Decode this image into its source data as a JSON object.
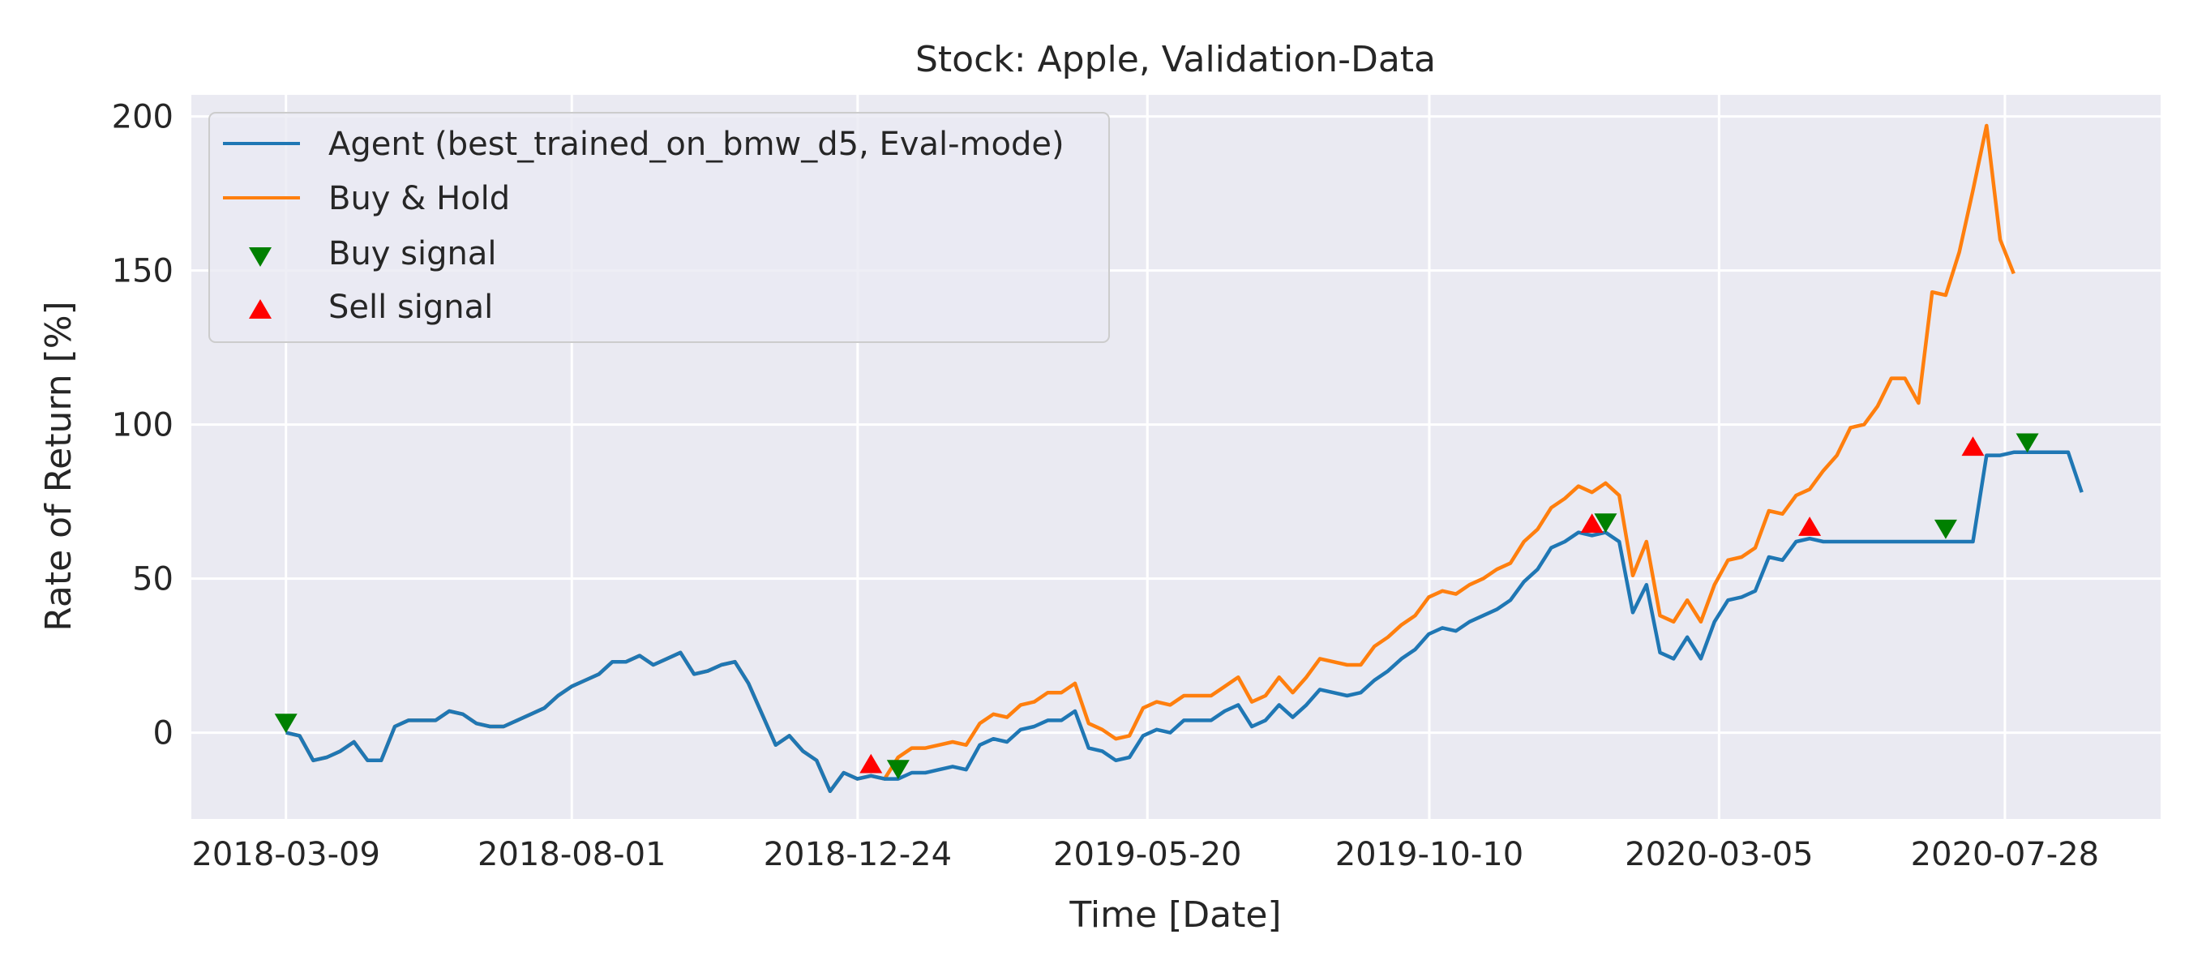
{
  "chart_data": {
    "type": "line",
    "title": "Stock: Apple, Validation-Data",
    "xlabel": "Time [Date]",
    "ylabel": "Rate of Return [%]",
    "x_start": "2018-03-09",
    "x_end": "2020-09-05",
    "xlim": [
      "2018-01-20",
      "2020-10-15"
    ],
    "ylim": [
      -28,
      207
    ],
    "x_ticks": [
      "2018-03-09",
      "2018-08-01",
      "2018-12-24",
      "2019-05-20",
      "2019-10-10",
      "2020-03-05",
      "2020-07-28"
    ],
    "y_ticks": [
      0,
      50,
      100,
      150,
      200
    ],
    "grid": true,
    "legend_position": "upper left",
    "series": [
      {
        "name": "Agent (best_trained_on_bmw_d5, Eval-mode)",
        "color": "#1f77b4",
        "values": [
          0,
          -1,
          -9,
          -8,
          -6,
          -3,
          -9,
          -9,
          2,
          4,
          4,
          4,
          7,
          6,
          3,
          2,
          2,
          4,
          6,
          8,
          12,
          15,
          17,
          19,
          23,
          23,
          25,
          22,
          24,
          26,
          19,
          20,
          22,
          23,
          16,
          6,
          -4,
          -1,
          -6,
          -9,
          -19,
          -13,
          -15,
          -14,
          -15,
          -15,
          -13,
          -13,
          -12,
          -11,
          -12,
          -4,
          -2,
          -3,
          1,
          2,
          4,
          4,
          7,
          -5,
          -6,
          -9,
          -8,
          -1,
          1,
          0,
          4,
          4,
          4,
          7,
          9,
          2,
          4,
          9,
          5,
          9,
          14,
          13,
          12,
          13,
          17,
          20,
          24,
          27,
          32,
          34,
          33,
          36,
          38,
          40,
          43,
          49,
          53,
          60,
          62,
          65,
          64,
          65,
          62,
          39,
          48,
          26,
          24,
          31,
          24,
          36,
          43,
          44,
          46,
          57,
          56,
          62,
          63,
          62,
          62,
          62,
          62,
          62,
          62,
          62,
          62,
          62,
          62,
          62,
          62,
          90,
          90,
          91,
          91,
          91,
          91,
          91,
          78
        ]
      },
      {
        "name": "Buy & Hold",
        "color": "#ff7f0e",
        "values": [
          0,
          -1,
          -9,
          -8,
          -6,
          -3,
          -9,
          -9,
          2,
          4,
          4,
          4,
          7,
          6,
          3,
          2,
          2,
          4,
          6,
          8,
          12,
          15,
          17,
          19,
          23,
          23,
          25,
          22,
          24,
          26,
          19,
          20,
          22,
          23,
          16,
          6,
          -4,
          -1,
          -6,
          -9,
          -19,
          -13,
          -15,
          -14,
          -15,
          -8,
          -5,
          -5,
          -4,
          -3,
          -4,
          3,
          6,
          5,
          9,
          10,
          13,
          13,
          16,
          3,
          1,
          -2,
          -1,
          8,
          10,
          9,
          12,
          12,
          12,
          15,
          18,
          10,
          12,
          18,
          13,
          18,
          24,
          23,
          22,
          22,
          28,
          31,
          35,
          38,
          44,
          46,
          45,
          48,
          50,
          53,
          55,
          62,
          66,
          73,
          76,
          80,
          78,
          81,
          77,
          51,
          62,
          38,
          36,
          43,
          36,
          48,
          56,
          57,
          60,
          72,
          71,
          77,
          79,
          85,
          90,
          99,
          100,
          106,
          115,
          115,
          107,
          143,
          142,
          156,
          176,
          197,
          160,
          149
        ]
      }
    ],
    "markers": [
      {
        "name": "Buy signal",
        "shape": "triangle-down",
        "color": "#008000",
        "points": [
          {
            "i": 0,
            "y": 3
          },
          {
            "i": 45,
            "y": -12
          },
          {
            "i": 97,
            "y": 68
          },
          {
            "i": 122,
            "y": 66
          },
          {
            "i": 128,
            "y": 94
          }
        ]
      },
      {
        "name": "Sell signal",
        "shape": "triangle-up",
        "color": "#ff0000",
        "points": [
          {
            "i": 43,
            "y": -10
          },
          {
            "i": 96,
            "y": 68
          },
          {
            "i": 112,
            "y": 67
          },
          {
            "i": 124,
            "y": 93
          }
        ]
      }
    ]
  }
}
